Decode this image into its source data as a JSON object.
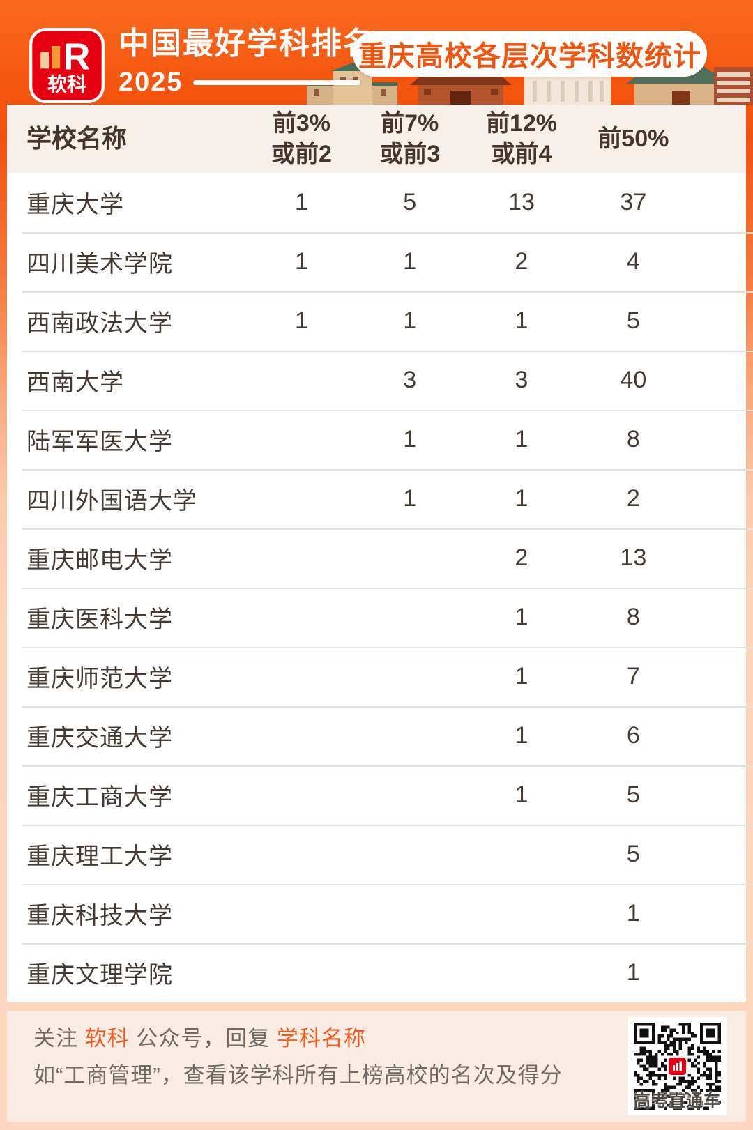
{
  "header": {
    "brand": "软科",
    "logo_mark": "R",
    "title": "中国最好学科排名",
    "year": "2025",
    "badge": "重庆高校各层次学科数统计"
  },
  "table": {
    "header": {
      "school": "学校名称",
      "c1l1": "前3%",
      "c1l2": "或前2",
      "c2l1": "前7%",
      "c2l2": "或前3",
      "c3l1": "前12%",
      "c3l2": "或前4",
      "c4": "前50%"
    }
  },
  "chart_data": {
    "type": "table",
    "title": "重庆高校各层次学科数统计",
    "columns": [
      "学校名称",
      "前3%或前2",
      "前7%或前3",
      "前12%或前4",
      "前50%"
    ],
    "rows": [
      {
        "name": "重庆大学",
        "top3": "1",
        "top7": "5",
        "top12": "13",
        "top50": "37"
      },
      {
        "name": "四川美术学院",
        "top3": "1",
        "top7": "1",
        "top12": "2",
        "top50": "4"
      },
      {
        "name": "西南政法大学",
        "top3": "1",
        "top7": "1",
        "top12": "1",
        "top50": "5"
      },
      {
        "name": "西南大学",
        "top3": "",
        "top7": "3",
        "top12": "3",
        "top50": "40"
      },
      {
        "name": "陆军军医大学",
        "top3": "",
        "top7": "1",
        "top12": "1",
        "top50": "8"
      },
      {
        "name": "四川外国语大学",
        "top3": "",
        "top7": "1",
        "top12": "1",
        "top50": "2"
      },
      {
        "name": "重庆邮电大学",
        "top3": "",
        "top7": "",
        "top12": "2",
        "top50": "13"
      },
      {
        "name": "重庆医科大学",
        "top3": "",
        "top7": "",
        "top12": "1",
        "top50": "8"
      },
      {
        "name": "重庆师范大学",
        "top3": "",
        "top7": "",
        "top12": "1",
        "top50": "7"
      },
      {
        "name": "重庆交通大学",
        "top3": "",
        "top7": "",
        "top12": "1",
        "top50": "6"
      },
      {
        "name": "重庆工商大学",
        "top3": "",
        "top7": "",
        "top12": "1",
        "top50": "5"
      },
      {
        "name": "重庆理工大学",
        "top3": "",
        "top7": "",
        "top12": "",
        "top50": "5"
      },
      {
        "name": "重庆科技大学",
        "top3": "",
        "top7": "",
        "top12": "",
        "top50": "1"
      },
      {
        "name": "重庆文理学院",
        "top3": "",
        "top7": "",
        "top12": "",
        "top50": "1"
      }
    ]
  },
  "footer": {
    "line1": {
      "t0": "关注 ",
      "t1": "软科",
      "t2": " 公众号，回复 ",
      "t3": "学科名称"
    },
    "line2": "如“工商管理”，查看该学科所有上榜高校的名次及得分",
    "qr_caption": "高考直通车"
  },
  "colors": {
    "accent_orange": "#f4540e",
    "brand_red": "#e60012",
    "badge_text": "#f0550f",
    "table_text": "#463931",
    "header_band": "#f7efe9",
    "footer_bg": "#f9ece3",
    "footer_gray": "#6e6a66",
    "footer_orange": "#ee5a22"
  }
}
